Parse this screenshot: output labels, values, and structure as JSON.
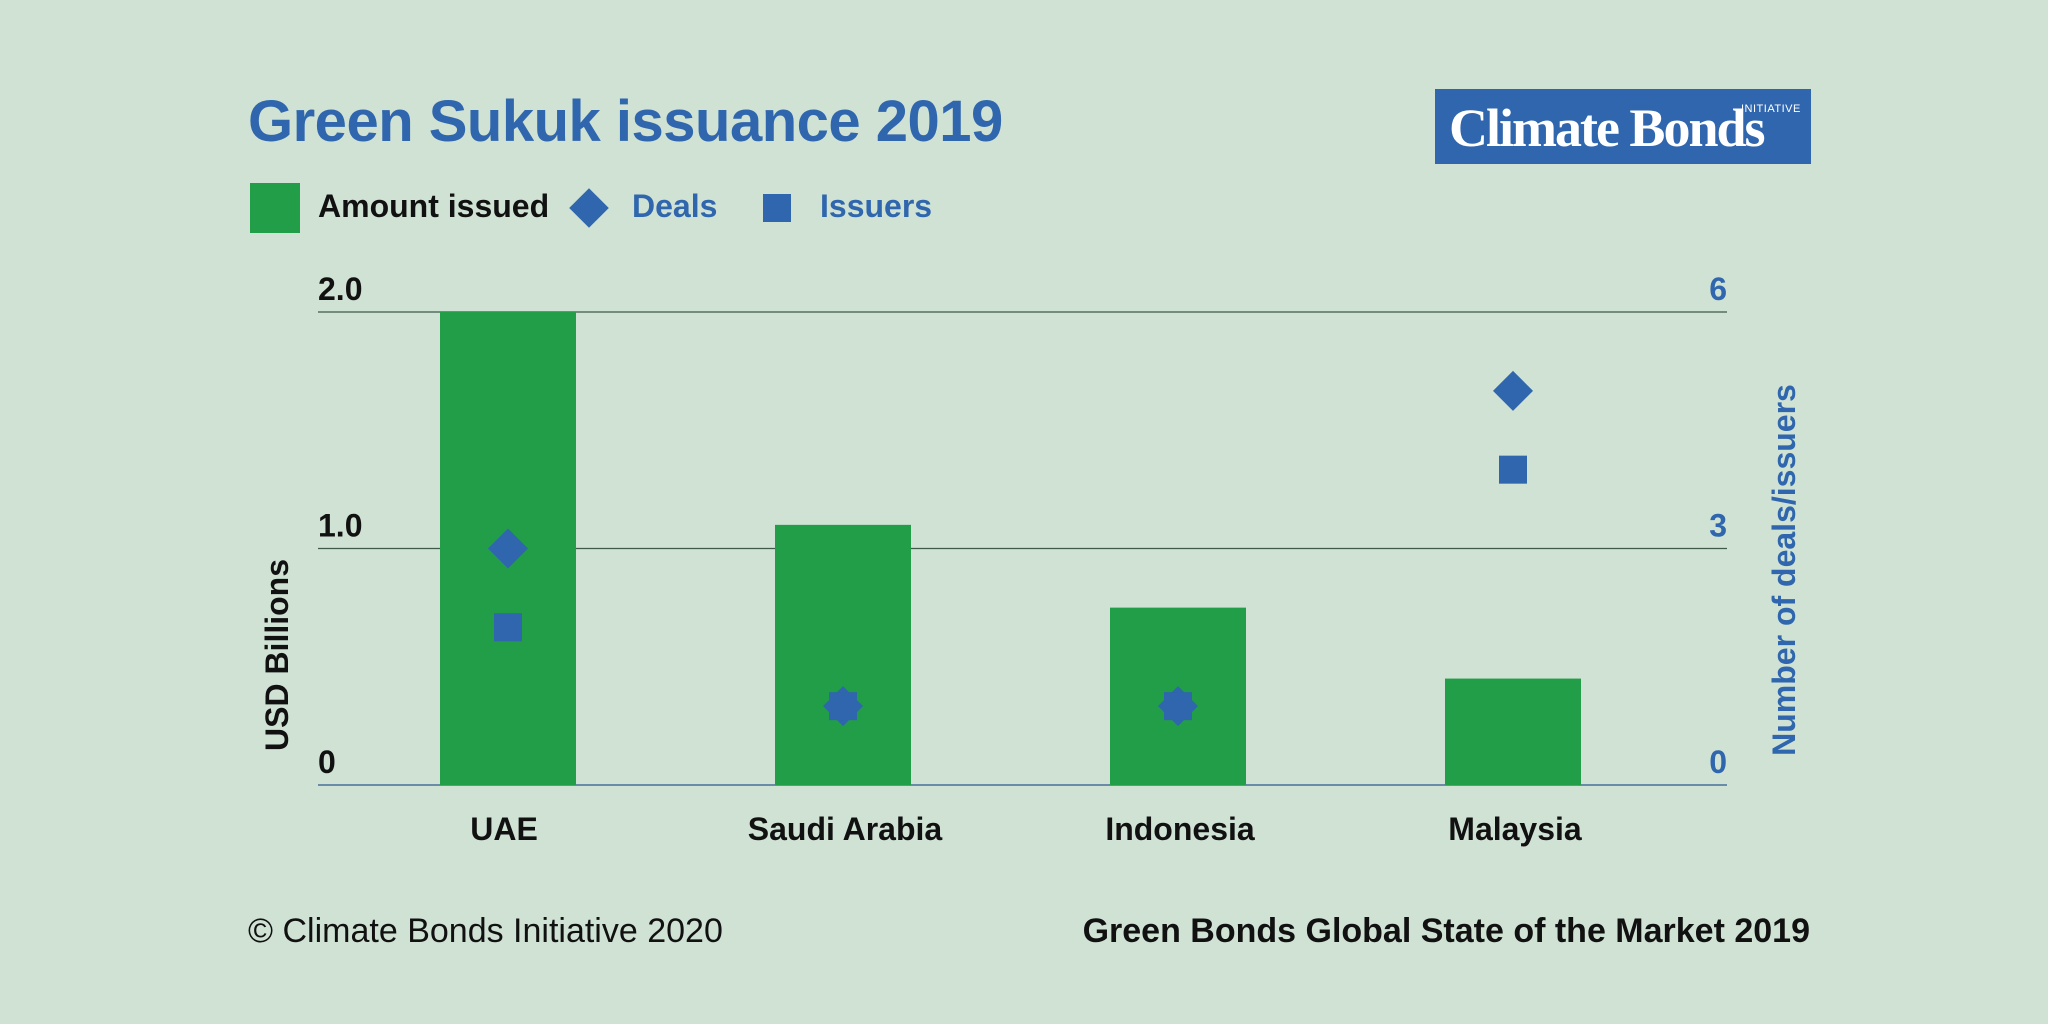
{
  "title": "Green Sukuk issuance 2019",
  "logo": {
    "text": "Climate Bonds",
    "superscript": "INITIATIVE"
  },
  "legend": {
    "amount_label": "Amount issued",
    "deals_label": "Deals",
    "issuers_label": "Issuers"
  },
  "footer": {
    "left": "© Climate Bonds Initiative 2020",
    "right": "Green Bonds Global State of the Market 2019"
  },
  "colors": {
    "background": "#cfe2d4",
    "bar": "#229e49",
    "marker": "#2f66ad",
    "title": "#2f66ad",
    "text": "#111111"
  },
  "chart_data": {
    "type": "bar",
    "title": "Green Sukuk issuance 2019",
    "categories": [
      "UAE",
      "Saudi Arabia",
      "Indonesia",
      "Malaysia"
    ],
    "series": [
      {
        "name": "Amount issued",
        "axis": "left",
        "type": "bar",
        "values": [
          2.0,
          1.1,
          0.75,
          0.45
        ]
      },
      {
        "name": "Deals",
        "axis": "right",
        "type": "marker",
        "marker": "diamond",
        "values": [
          3,
          1,
          1,
          5
        ]
      },
      {
        "name": "Issuers",
        "axis": "right",
        "type": "marker",
        "marker": "square",
        "values": [
          2,
          1,
          1,
          4
        ]
      }
    ],
    "ylabel": "USD Billions",
    "y2label": "Number of deals/issuers",
    "ylim": [
      0,
      2.0
    ],
    "y2lim": [
      0,
      6
    ],
    "yticks": [
      "0",
      "1.0",
      "2.0"
    ],
    "yticks_values": [
      0,
      1.0,
      2.0
    ],
    "y2ticks": [
      "0",
      "3",
      "6"
    ],
    "y2ticks_values": [
      0,
      3,
      6
    ],
    "grid": true,
    "legend_position": "top-left"
  }
}
